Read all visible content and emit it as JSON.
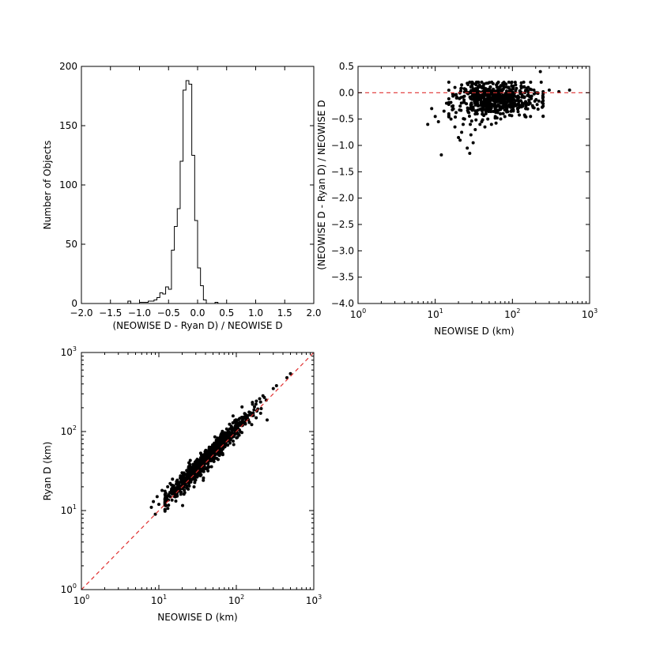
{
  "chart_data": [
    {
      "type": "histogram",
      "xlabel": "(NEOWISE D - Ryan D) / NEOWISE D",
      "ylabel": "Number of Objects",
      "xlim": [
        -2.0,
        2.0
      ],
      "ylim": [
        0,
        200
      ],
      "xticks": [
        "−2.0",
        "−1.5",
        "−1.0",
        "−0.5",
        "0.0",
        "0.5",
        "1.0",
        "1.5",
        "2.0"
      ],
      "yticks": [
        "0",
        "50",
        "100",
        "150",
        "200"
      ],
      "bin_width": 0.05,
      "bin_start": -1.2,
      "counts": [
        2,
        0,
        0,
        0,
        1,
        1,
        1,
        2,
        2,
        3,
        5,
        9,
        8,
        14,
        12,
        45,
        65,
        80,
        120,
        180,
        188,
        185,
        125,
        70,
        30,
        15,
        3,
        0,
        0,
        0,
        1
      ],
      "grid": false,
      "legend": "none"
    },
    {
      "type": "scatter",
      "xlabel": "NEOWISE D (km)",
      "ylabel": "(NEOWISE D - Ryan D) / NEOWISE D",
      "xscale": "log",
      "xlim": [
        1,
        1000
      ],
      "ylim": [
        -4.0,
        0.5
      ],
      "xticks": [
        "10^0",
        "10^1",
        "10^2",
        "10^3"
      ],
      "yticks": [
        "0.5",
        "0.0",
        "−0.5",
        "−1.0",
        "−1.5",
        "−2.0",
        "−2.5",
        "−3.0",
        "−3.5",
        "−4.0"
      ],
      "reference_line": {
        "y": 0,
        "style": "dashed",
        "color": "#e03030"
      },
      "points": [
        [
          8,
          -0.6
        ],
        [
          9,
          -0.3
        ],
        [
          10,
          -0.45
        ],
        [
          11,
          -0.55
        ],
        [
          12,
          -1.18
        ],
        [
          13,
          -0.35
        ],
        [
          14,
          -0.2
        ],
        [
          15,
          -0.45
        ],
        [
          16,
          -0.5
        ],
        [
          17,
          -0.25
        ],
        [
          18,
          -0.65
        ],
        [
          19,
          -0.1
        ],
        [
          20,
          -0.85
        ],
        [
          21,
          -0.9
        ],
        [
          22,
          -0.75
        ],
        [
          23,
          -0.6
        ],
        [
          24,
          -0.5
        ],
        [
          25,
          0.05
        ],
        [
          26,
          -1.05
        ],
        [
          27,
          -0.3
        ],
        [
          28,
          -1.15
        ],
        [
          29,
          -0.8
        ],
        [
          31,
          -0.95
        ],
        [
          33,
          -0.7
        ],
        [
          35,
          -0.4
        ],
        [
          38,
          -0.6
        ],
        [
          40,
          -0.55
        ],
        [
          44,
          -0.65
        ],
        [
          48,
          -0.5
        ],
        [
          52,
          -0.35
        ],
        [
          60,
          -0.45
        ],
        [
          70,
          -0.4
        ],
        [
          85,
          -0.3
        ],
        [
          100,
          -0.2
        ],
        [
          150,
          -0.25
        ],
        [
          200,
          0.0
        ],
        [
          230,
          0.4
        ],
        [
          250,
          -0.15
        ],
        [
          300,
          0.05
        ],
        [
          400,
          0.02
        ],
        [
          550,
          0.05
        ],
        [
          18,
          0.1
        ],
        [
          22,
          0.15
        ],
        [
          26,
          0.18
        ],
        [
          30,
          0.2
        ],
        [
          34,
          0.15
        ],
        [
          40,
          0.2
        ],
        [
          46,
          0.18
        ],
        [
          54,
          0.2
        ],
        [
          62,
          0.15
        ],
        [
          75,
          0.18
        ],
        [
          90,
          0.2
        ],
        [
          110,
          0.15
        ],
        [
          130,
          0.12
        ],
        [
          160,
          0.1
        ],
        [
          190,
          0.05
        ]
      ],
      "dense_cloud": {
        "x_range": [
          15,
          250
        ],
        "y_range": [
          -0.6,
          0.2
        ],
        "count": 640
      },
      "grid": false,
      "legend": "none"
    },
    {
      "type": "scatter",
      "xlabel": "NEOWISE D (km)",
      "ylabel": "Ryan D (km)",
      "xscale": "log",
      "yscale": "log",
      "xlim": [
        1,
        1000
      ],
      "ylim": [
        1,
        1000
      ],
      "xticks": [
        "10^0",
        "10^1",
        "10^2",
        "10^3"
      ],
      "yticks": [
        "10^0",
        "10^1",
        "10^2",
        "10^3"
      ],
      "reference_line": {
        "relation": "y = x",
        "style": "dashed",
        "color": "#e03030"
      },
      "points": [
        [
          8,
          11
        ],
        [
          8.5,
          13
        ],
        [
          9,
          9
        ],
        [
          9.5,
          15
        ],
        [
          10,
          12
        ],
        [
          11,
          18
        ],
        [
          12,
          16
        ],
        [
          13,
          20
        ],
        [
          14,
          22
        ],
        [
          15,
          25
        ],
        [
          300,
          350
        ],
        [
          330,
          380
        ],
        [
          450,
          480
        ],
        [
          500,
          540
        ],
        [
          250,
          140
        ],
        [
          230,
          270
        ],
        [
          200,
          260
        ]
      ],
      "dense_cloud": {
        "x_range": [
          12,
          250
        ],
        "scatter_sigma_log10": 0.06,
        "bias_log10": 0.04,
        "count": 900
      },
      "grid": false,
      "legend": "none"
    }
  ]
}
